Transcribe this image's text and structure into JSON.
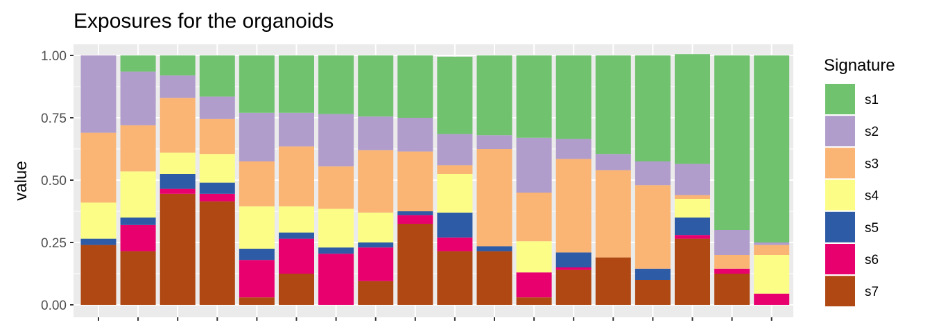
{
  "chart_data": {
    "type": "bar",
    "stacked": true,
    "title": "Exposures for the organoids",
    "xlabel": "",
    "ylabel": "value",
    "ylim": [
      0,
      1
    ],
    "yticks": [
      "0.00",
      "0.25",
      "0.50",
      "0.75",
      "1.00"
    ],
    "ytick_values": [
      0,
      0.25,
      0.5,
      0.75,
      1.0
    ],
    "categories": [
      "",
      "",
      "",
      "",
      "",
      "",
      "",
      "",
      "",
      "",
      "",
      "",
      "",
      "",
      "",
      "",
      "",
      ""
    ],
    "grid": true,
    "legend": {
      "title": "Signature",
      "position": "right"
    },
    "colors": {
      "panel": "#EBEBEB",
      "grid": "#FFFFFF",
      "s1": "#71C26F",
      "s2": "#B09DCB",
      "s3": "#FAB474",
      "s4": "#FCFD86",
      "s5": "#2E5BA5",
      "s6": "#E8006F",
      "s7": "#B04813"
    },
    "series": [
      {
        "name": "s7",
        "values": [
          0.24,
          0.215,
          0.445,
          0.415,
          0.03,
          0.125,
          0.0,
          0.095,
          0.325,
          0.215,
          0.215,
          0.03,
          0.14,
          0.19,
          0.1,
          0.265,
          0.125,
          0.0
        ]
      },
      {
        "name": "s6",
        "values": [
          0.0,
          0.105,
          0.02,
          0.03,
          0.15,
          0.14,
          0.205,
          0.135,
          0.035,
          0.055,
          0.0,
          0.1,
          0.01,
          0.0,
          0.0,
          0.015,
          0.02,
          0.045
        ]
      },
      {
        "name": "s5",
        "values": [
          0.025,
          0.03,
          0.06,
          0.045,
          0.045,
          0.025,
          0.025,
          0.02,
          0.015,
          0.1,
          0.02,
          0.0,
          0.06,
          0.0,
          0.045,
          0.07,
          0.0,
          0.0
        ]
      },
      {
        "name": "s4",
        "values": [
          0.145,
          0.185,
          0.085,
          0.115,
          0.17,
          0.105,
          0.155,
          0.12,
          0.0,
          0.155,
          0.0,
          0.125,
          0.0,
          0.0,
          0.0,
          0.075,
          0.0,
          0.155
        ]
      },
      {
        "name": "s3",
        "values": [
          0.28,
          0.185,
          0.22,
          0.14,
          0.18,
          0.24,
          0.17,
          0.25,
          0.24,
          0.035,
          0.39,
          0.195,
          0.375,
          0.35,
          0.335,
          0.015,
          0.055,
          0.04
        ]
      },
      {
        "name": "s2",
        "values": [
          0.31,
          0.215,
          0.09,
          0.09,
          0.195,
          0.135,
          0.21,
          0.135,
          0.135,
          0.125,
          0.055,
          0.22,
          0.08,
          0.065,
          0.095,
          0.125,
          0.1,
          0.01
        ]
      },
      {
        "name": "s1",
        "values": [
          0.0,
          0.065,
          0.08,
          0.165,
          0.23,
          0.23,
          0.235,
          0.245,
          0.25,
          0.31,
          0.32,
          0.33,
          0.335,
          0.395,
          0.425,
          0.44,
          0.7,
          0.75
        ]
      }
    ],
    "legend_order": [
      "s1",
      "s2",
      "s3",
      "s4",
      "s5",
      "s6",
      "s7"
    ]
  }
}
